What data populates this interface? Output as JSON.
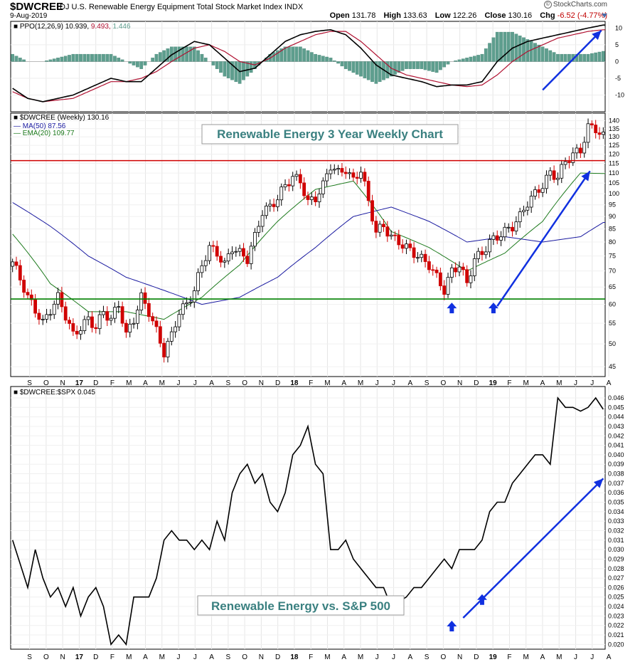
{
  "header": {
    "symbol": "$DWCREE",
    "description": "DJ U.S. Renewable Energy Equipment Total Stock Market Index  INDX",
    "date": "9-Aug-2019",
    "credit": "StockCharts.com",
    "ohlc": [
      {
        "label": "Open",
        "value": "131.78"
      },
      {
        "label": "High",
        "value": "133.63"
      },
      {
        "label": "Low",
        "value": "122.26"
      },
      {
        "label": "Close",
        "value": "130.16"
      },
      {
        "label": "Chg",
        "value": "-6.52 (-4.77%)"
      }
    ]
  },
  "colors": {
    "up": "#000000",
    "down": "#d00000",
    "ma50": "#1a1aa0",
    "ema20": "#1d7a1d",
    "ppo_signal": "#b01030",
    "hist": "#5e9e8e",
    "resistance": "#d00000",
    "support": "#008000",
    "arrow": "#1030e0",
    "annotation_text": "#3a8080"
  },
  "months": [
    "S",
    "O",
    "N",
    "17",
    "D",
    "F",
    "M",
    "A",
    "M",
    "J",
    "J",
    "A",
    "S",
    "O",
    "N",
    "D",
    "18",
    "F",
    "M",
    "A",
    "M",
    "J",
    "J",
    "A",
    "S",
    "O",
    "N",
    "D",
    "19",
    "F",
    "M",
    "A",
    "M",
    "J",
    "J",
    "A"
  ],
  "chart_data": [
    {
      "type": "line",
      "panel": "ppo",
      "title": "PPO(12,26,9) 10.939, 9.493, 1.446",
      "labels": {
        "name": "PPO(12,26,9)",
        "values": [
          "10.939",
          "9.493",
          "1.446"
        ]
      },
      "ylim": [
        -15,
        12
      ],
      "yticks": [
        10,
        5,
        0,
        -5,
        -10
      ],
      "x_units": "weeks from Sep 2016",
      "series": [
        {
          "name": "PPO",
          "x": [
            0,
            4,
            8,
            12,
            16,
            22,
            26,
            30,
            34,
            38,
            42,
            48,
            52,
            56,
            60,
            64,
            68,
            72,
            76,
            80,
            84,
            88,
            92,
            96,
            100,
            104,
            108,
            112,
            116,
            120,
            124,
            128,
            132,
            136,
            140,
            144,
            148,
            152,
            156
          ],
          "values": [
            -8,
            -11,
            -12,
            -11,
            -10,
            -7,
            -5,
            -6,
            -6,
            -2,
            2,
            6,
            5,
            1,
            -3,
            -2,
            2,
            6,
            8,
            9,
            9.5,
            8,
            4,
            -1,
            -4,
            -5,
            -6,
            -7.5,
            -7,
            -7,
            -6,
            0,
            4,
            6,
            7,
            8,
            9,
            10,
            10.9
          ]
        },
        {
          "name": "Signal",
          "x": [
            0,
            4,
            8,
            12,
            16,
            22,
            26,
            30,
            34,
            38,
            42,
            48,
            52,
            56,
            60,
            64,
            68,
            72,
            76,
            80,
            84,
            88,
            92,
            96,
            100,
            104,
            108,
            112,
            116,
            120,
            124,
            128,
            132,
            136,
            140,
            144,
            148,
            152,
            156
          ],
          "values": [
            -9,
            -11,
            -12,
            -11.5,
            -11,
            -8,
            -6,
            -6,
            -5,
            -3,
            0,
            4,
            5,
            3,
            0,
            -1,
            1,
            4,
            6,
            8,
            9,
            9,
            6,
            2,
            -2,
            -4,
            -5,
            -6,
            -7,
            -7.5,
            -7,
            -4,
            0,
            3,
            5,
            7,
            8,
            9,
            9.5
          ]
        },
        {
          "name": "Histogram",
          "values_note": "difference PPO - Signal"
        }
      ]
    },
    {
      "type": "candlestick",
      "panel": "price",
      "title": "$DWCREE (Weekly) 130.16",
      "annotation": "Renewable Energy 3 Year Weekly Chart",
      "legend": [
        {
          "name": "MA(50)",
          "value": "87.56"
        },
        {
          "name": "EMA(20)",
          "value": "109.77"
        }
      ],
      "ylim": [
        43,
        145
      ],
      "yticks": [
        45,
        50,
        55,
        60,
        65,
        70,
        75,
        80,
        85,
        90,
        95,
        100,
        105,
        110,
        115,
        120,
        125,
        130,
        135,
        140
      ],
      "scale": "log",
      "horizontal_lines": [
        {
          "value": 116.5,
          "color": "red"
        },
        {
          "value": 61.5,
          "color": "green"
        }
      ],
      "close_x": [
        0,
        4,
        8,
        12,
        16,
        20,
        22,
        24,
        26,
        28,
        30,
        32,
        34,
        36,
        38,
        40,
        42,
        44,
        46,
        48,
        50,
        52,
        54,
        56,
        58,
        60,
        62,
        64,
        66,
        68,
        70,
        72,
        74,
        76,
        78,
        80,
        82,
        84,
        86,
        88,
        90,
        92,
        94,
        96,
        98,
        100,
        102,
        104,
        106,
        108,
        110,
        112,
        114,
        116,
        118,
        120,
        122,
        124,
        126,
        128,
        130,
        132,
        134,
        136,
        138,
        140,
        142,
        144,
        146,
        148,
        150,
        152,
        154,
        156
      ],
      "close": [
        73,
        62,
        55,
        62,
        52,
        56,
        54,
        58,
        56,
        60,
        52,
        56,
        62,
        58,
        53,
        48,
        52,
        58,
        60,
        64,
        72,
        78,
        76,
        72,
        78,
        76,
        74,
        82,
        92,
        94,
        98,
        104,
        108,
        106,
        96,
        98,
        104,
        114,
        110,
        112,
        106,
        112,
        96,
        84,
        86,
        82,
        80,
        78,
        76,
        74,
        72,
        68,
        64,
        70,
        72,
        66,
        74,
        76,
        80,
        82,
        84,
        86,
        90,
        96,
        100,
        104,
        110,
        108,
        116,
        120,
        122,
        136,
        135,
        130.16
      ],
      "ma50_x": [
        0,
        10,
        20,
        30,
        40,
        50,
        60,
        70,
        80,
        90,
        100,
        110,
        120,
        130,
        140,
        150,
        156
      ],
      "ma50": [
        96,
        86,
        75,
        68,
        64,
        60,
        62,
        68,
        78,
        90,
        94,
        88,
        80,
        82,
        80,
        82,
        87.56
      ],
      "ema20_x": [
        0,
        10,
        20,
        30,
        40,
        50,
        60,
        70,
        80,
        90,
        100,
        110,
        120,
        130,
        140,
        150,
        156
      ],
      "ema20": [
        83,
        66,
        58,
        58,
        56,
        62,
        72,
        88,
        102,
        106,
        84,
        78,
        70,
        76,
        88,
        110,
        109.77
      ]
    },
    {
      "type": "line",
      "panel": "ratio",
      "title": "$DWCREE:$SPX 0.045",
      "annotation": "Renewable Energy vs. S&P 500",
      "ylim": [
        0.0195,
        0.0472
      ],
      "yticks": [
        0.02,
        0.021,
        0.022,
        0.023,
        0.024,
        0.025,
        0.026,
        0.027,
        0.028,
        0.029,
        0.03,
        0.031,
        0.032,
        0.033,
        0.034,
        0.035,
        0.036,
        0.037,
        0.038,
        0.039,
        0.04,
        0.041,
        0.042,
        0.043,
        0.044,
        0.045,
        0.046
      ],
      "x": [
        0,
        4,
        6,
        8,
        10,
        12,
        14,
        16,
        18,
        20,
        22,
        24,
        26,
        28,
        30,
        32,
        34,
        36,
        38,
        40,
        42,
        44,
        46,
        48,
        50,
        52,
        54,
        56,
        58,
        60,
        62,
        64,
        66,
        68,
        70,
        72,
        74,
        76,
        78,
        80,
        82,
        84,
        86,
        88,
        90,
        92,
        94,
        96,
        98,
        100,
        102,
        104,
        106,
        108,
        110,
        112,
        114,
        116,
        118,
        120,
        122,
        124,
        126,
        128,
        130,
        132,
        134,
        136,
        138,
        140,
        142,
        144,
        146,
        148,
        150,
        152,
        154,
        156
      ],
      "values": [
        0.031,
        0.026,
        0.03,
        0.027,
        0.025,
        0.026,
        0.024,
        0.026,
        0.023,
        0.025,
        0.026,
        0.024,
        0.02,
        0.021,
        0.02,
        0.025,
        0.025,
        0.025,
        0.027,
        0.031,
        0.032,
        0.031,
        0.031,
        0.03,
        0.031,
        0.03,
        0.033,
        0.031,
        0.036,
        0.038,
        0.039,
        0.037,
        0.038,
        0.035,
        0.034,
        0.036,
        0.04,
        0.041,
        0.043,
        0.039,
        0.038,
        0.03,
        0.03,
        0.031,
        0.029,
        0.028,
        0.027,
        0.026,
        0.026,
        0.024,
        0.0245,
        0.025,
        0.026,
        0.026,
        0.027,
        0.028,
        0.029,
        0.028,
        0.03,
        0.03,
        0.03,
        0.031,
        0.034,
        0.035,
        0.035,
        0.037,
        0.038,
        0.039,
        0.04,
        0.04,
        0.039,
        0.046,
        0.045,
        0.045,
        0.0446,
        0.045,
        0.046,
        0.0448
      ]
    }
  ]
}
